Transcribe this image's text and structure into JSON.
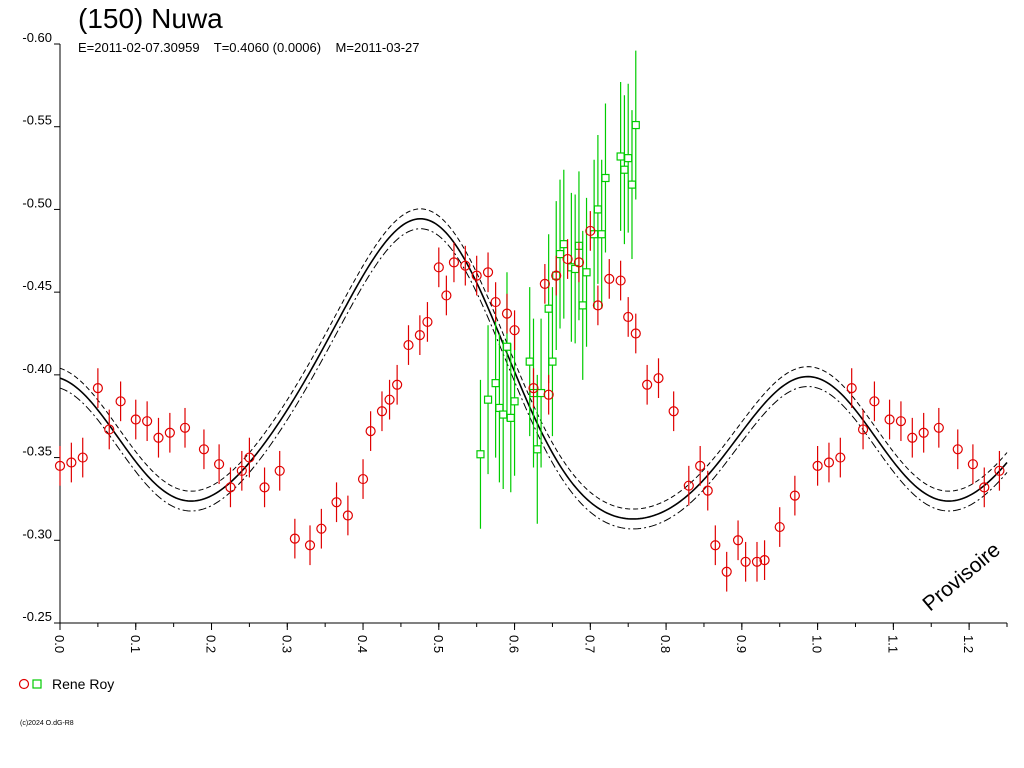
{
  "header": {
    "title": "(150) Nuwa",
    "subtitle": "E=2011-02-07.30959    T=0.4060 (0.0006)    M=2011-03-27"
  },
  "legend": {
    "observer": "Rene Roy",
    "colors": {
      "red_circles": "#e00000",
      "green_squares": "#00cc00"
    }
  },
  "watermark": "Provisoire",
  "copyright": "(c)2024 O.dG-R8",
  "chart_data": {
    "type": "scatter",
    "title": "(150) Nuwa",
    "xlabel": "",
    "ylabel": "",
    "xlim": [
      0.0,
      1.25
    ],
    "ylim": [
      -0.25,
      -0.6
    ],
    "x_ticks": [
      "0.0",
      "0.1",
      "0.2",
      "0.3",
      "0.4",
      "0.5",
      "0.6",
      "0.7",
      "0.8",
      "0.9",
      "1.0",
      "1.1",
      "1.2"
    ],
    "y_ticks": [
      "-0.60",
      "-0.55",
      "-0.50",
      "-0.45",
      "-0.40",
      "-0.35",
      "-0.30",
      "-0.25"
    ],
    "grid": false,
    "legend_position": "bottom-left",
    "series": [
      {
        "name": "Rene Roy",
        "marker": "circle",
        "color": "#e00000",
        "err": 0.012,
        "points": [
          [
            0.0,
            -0.345
          ],
          [
            0.015,
            -0.347
          ],
          [
            0.03,
            -0.35
          ],
          [
            0.05,
            -0.392
          ],
          [
            0.065,
            -0.367
          ],
          [
            0.08,
            -0.384
          ],
          [
            0.1,
            -0.373
          ],
          [
            0.115,
            -0.372
          ],
          [
            0.13,
            -0.362
          ],
          [
            0.145,
            -0.365
          ],
          [
            0.165,
            -0.368
          ],
          [
            0.19,
            -0.355
          ],
          [
            0.21,
            -0.346
          ],
          [
            0.225,
            -0.332
          ],
          [
            0.24,
            -0.342
          ],
          [
            0.25,
            -0.35
          ],
          [
            0.27,
            -0.332
          ],
          [
            0.29,
            -0.342
          ],
          [
            0.31,
            -0.301
          ],
          [
            0.33,
            -0.297
          ],
          [
            0.345,
            -0.307
          ],
          [
            0.365,
            -0.323
          ],
          [
            0.38,
            -0.315
          ],
          [
            0.4,
            -0.337
          ],
          [
            0.41,
            -0.366
          ],
          [
            0.425,
            -0.378
          ],
          [
            0.435,
            -0.385
          ],
          [
            0.445,
            -0.394
          ],
          [
            0.46,
            -0.418
          ],
          [
            0.475,
            -0.424
          ],
          [
            0.485,
            -0.432
          ],
          [
            0.5,
            -0.465
          ],
          [
            0.51,
            -0.448
          ],
          [
            0.52,
            -0.468
          ],
          [
            0.535,
            -0.466
          ],
          [
            0.55,
            -0.46
          ],
          [
            0.565,
            -0.462
          ],
          [
            0.575,
            -0.444
          ],
          [
            0.59,
            -0.437
          ],
          [
            0.6,
            -0.427
          ],
          [
            0.625,
            -0.392
          ],
          [
            0.64,
            -0.455
          ],
          [
            0.645,
            -0.388
          ],
          [
            0.655,
            -0.46
          ],
          [
            0.67,
            -0.47
          ],
          [
            0.685,
            -0.468
          ],
          [
            0.7,
            -0.487
          ],
          [
            0.71,
            -0.442
          ],
          [
            0.725,
            -0.458
          ],
          [
            0.74,
            -0.457
          ],
          [
            0.75,
            -0.435
          ],
          [
            0.76,
            -0.425
          ],
          [
            0.775,
            -0.394
          ],
          [
            0.79,
            -0.398
          ],
          [
            0.81,
            -0.378
          ],
          [
            0.83,
            -0.333
          ],
          [
            0.845,
            -0.345
          ],
          [
            0.855,
            -0.33
          ],
          [
            0.865,
            -0.297
          ],
          [
            0.88,
            -0.281
          ],
          [
            0.895,
            -0.3
          ],
          [
            0.905,
            -0.287
          ],
          [
            0.92,
            -0.287
          ],
          [
            0.93,
            -0.288
          ],
          [
            0.95,
            -0.308
          ],
          [
            0.97,
            -0.327
          ],
          [
            1.0,
            -0.345
          ],
          [
            1.015,
            -0.347
          ],
          [
            1.03,
            -0.35
          ],
          [
            1.045,
            -0.392
          ],
          [
            1.06,
            -0.367
          ],
          [
            1.075,
            -0.384
          ],
          [
            1.095,
            -0.373
          ],
          [
            1.11,
            -0.372
          ],
          [
            1.125,
            -0.362
          ],
          [
            1.14,
            -0.365
          ],
          [
            1.16,
            -0.368
          ],
          [
            1.185,
            -0.355
          ],
          [
            1.205,
            -0.346
          ],
          [
            1.22,
            -0.332
          ],
          [
            1.24,
            -0.342
          ]
        ]
      },
      {
        "name": "",
        "marker": "square",
        "color": "#00cc00",
        "err": 0.045,
        "points": [
          [
            0.555,
            -0.352
          ],
          [
            0.565,
            -0.385
          ],
          [
            0.575,
            -0.395
          ],
          [
            0.58,
            -0.38
          ],
          [
            0.585,
            -0.376
          ],
          [
            0.59,
            -0.417
          ],
          [
            0.595,
            -0.374
          ],
          [
            0.6,
            -0.384
          ],
          [
            0.62,
            -0.408
          ],
          [
            0.625,
            -0.389
          ],
          [
            0.63,
            -0.355
          ],
          [
            0.635,
            -0.389
          ],
          [
            0.645,
            -0.44
          ],
          [
            0.65,
            -0.408
          ],
          [
            0.655,
            -0.46
          ],
          [
            0.66,
            -0.473
          ],
          [
            0.665,
            -0.479
          ],
          [
            0.675,
            -0.465
          ],
          [
            0.68,
            -0.464
          ],
          [
            0.685,
            -0.478
          ],
          [
            0.69,
            -0.442
          ],
          [
            0.695,
            -0.462
          ],
          [
            0.705,
            -0.485
          ],
          [
            0.71,
            -0.5
          ],
          [
            0.715,
            -0.485
          ],
          [
            0.72,
            -0.519
          ],
          [
            0.74,
            -0.532
          ],
          [
            0.745,
            -0.524
          ],
          [
            0.75,
            -0.531
          ],
          [
            0.755,
            -0.515
          ],
          [
            0.76,
            -0.551
          ]
        ]
      }
    ],
    "model_curve": {
      "offset": -0.381,
      "terms": [
        {
          "cos": 0.046,
          "sin": -0.017
        },
        {
          "cos": -0.057,
          "sin": 0.02
        },
        {
          "cos": 0.0,
          "sin": 0.0
        },
        {
          "cos": -0.006,
          "sin": 0.0
        }
      ],
      "envelope": 0.006
    }
  }
}
